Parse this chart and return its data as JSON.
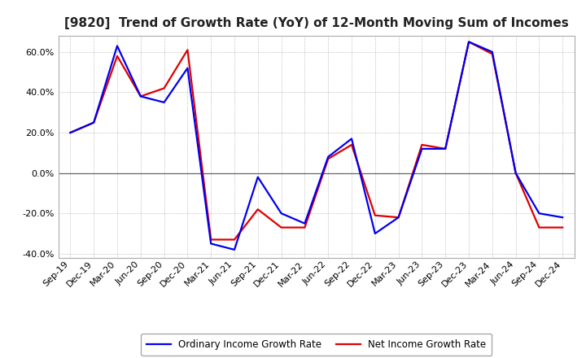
{
  "title": "[9820]  Trend of Growth Rate (YoY) of 12-Month Moving Sum of Incomes",
  "x_labels": [
    "Sep-19",
    "Dec-19",
    "Mar-20",
    "Jun-20",
    "Sep-20",
    "Dec-20",
    "Mar-21",
    "Jun-21",
    "Sep-21",
    "Dec-21",
    "Mar-22",
    "Jun-22",
    "Sep-22",
    "Dec-22",
    "Mar-23",
    "Jun-23",
    "Sep-23",
    "Dec-23",
    "Mar-24",
    "Jun-24",
    "Sep-24",
    "Dec-24"
  ],
  "ordinary_income": [
    20.0,
    25.0,
    63.0,
    38.0,
    35.0,
    52.0,
    -35.0,
    -38.0,
    -2.0,
    -20.0,
    -25.0,
    8.0,
    17.0,
    -30.0,
    -22.0,
    12.0,
    12.0,
    65.0,
    60.0,
    0.0,
    -20.0,
    -22.0
  ],
  "net_income": [
    20.0,
    25.0,
    58.0,
    38.0,
    42.0,
    61.0,
    -33.0,
    -33.0,
    -18.0,
    -27.0,
    -27.0,
    7.0,
    14.0,
    -21.0,
    -22.0,
    14.0,
    12.0,
    65.0,
    59.0,
    0.0,
    -27.0,
    -27.0
  ],
  "ordinary_color": "#0000ee",
  "net_color": "#dd0000",
  "ylim": [
    -42,
    68
  ],
  "yticks": [
    -40,
    -20,
    0,
    20,
    40,
    60
  ],
  "background": "#ffffff",
  "grid_color": "#999999",
  "legend_ordinary": "Ordinary Income Growth Rate",
  "legend_net": "Net Income Growth Rate",
  "title_fontsize": 11,
  "tick_fontsize": 8,
  "line_width": 1.6
}
